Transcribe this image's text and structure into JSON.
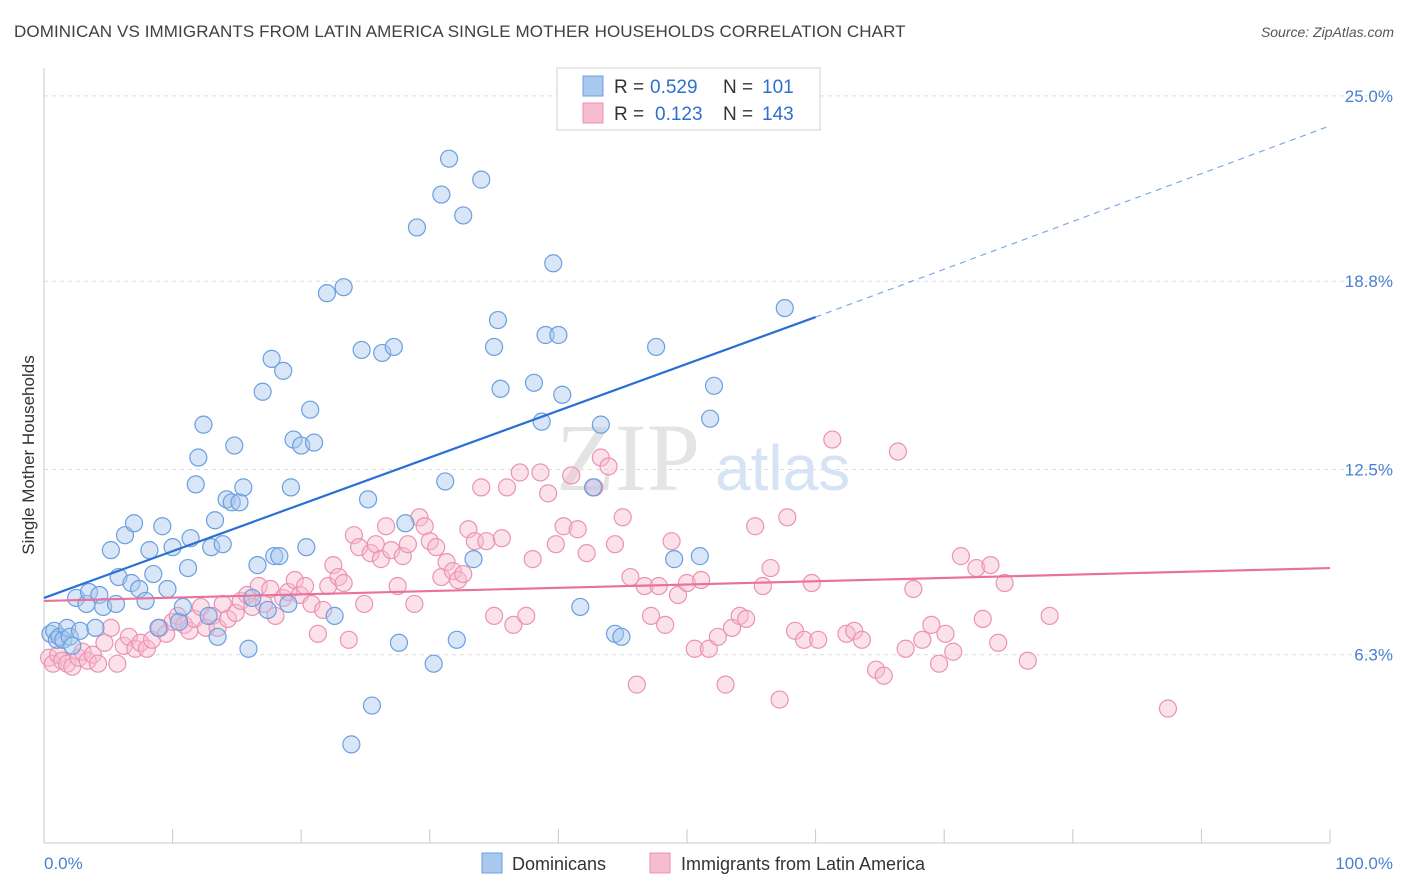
{
  "title": "DOMINICAN VS IMMIGRANTS FROM LATIN AMERICA SINGLE MOTHER HOUSEHOLDS CORRELATION CHART",
  "source": "Source: ZipAtlas.com",
  "watermark": {
    "part1": "ZIP",
    "part2": "atlas"
  },
  "legend": {
    "rows": [
      {
        "r_label": "R =",
        "r_value": "0.529",
        "n_label": "N =",
        "n_value": "101"
      },
      {
        "r_label": "R =",
        "r_value": "0.123",
        "n_label": "N =",
        "n_value": "143"
      }
    ]
  },
  "bottom_legend": [
    "Dominicans",
    "Immigrants from Latin America"
  ],
  "colors": {
    "blue_fill": "#a9c8ee",
    "blue_stroke": "#6a9fe0",
    "blue_line": "#2a6fd6",
    "pink_fill": "#f6bcd0",
    "pink_stroke": "#ec92b2",
    "pink_line": "#e8729c",
    "tick_text": "#4a7fd1",
    "grid": "#dcdcdc"
  },
  "chart_data": {
    "type": "scatter",
    "title": "DOMINICAN VS IMMIGRANTS FROM LATIN AMERICA SINGLE MOTHER HOUSEHOLDS CORRELATION CHART",
    "xlabel": "",
    "ylabel": "Single Mother Households",
    "xlim": [
      0,
      100
    ],
    "ylim": [
      0,
      25.6
    ],
    "x_tick_labels": [
      "0.0%",
      "100.0%"
    ],
    "y_ticks": [
      6.3,
      12.5,
      18.8,
      25.0
    ],
    "y_tick_labels": [
      "6.3%",
      "12.5%",
      "18.8%",
      "25.0%"
    ],
    "grid": true,
    "legend_position": "top-center",
    "series": [
      {
        "name": "Dominicans",
        "r": 0.529,
        "n": 101,
        "trend": {
          "x0": 0,
          "y0": 8.2,
          "x1": 60,
          "y1": 17.6,
          "dashed_to_x": 100,
          "dashed_to_y": 24.0
        },
        "points": [
          [
            0.5,
            7.0
          ],
          [
            0.8,
            7.1
          ],
          [
            1.0,
            6.8
          ],
          [
            1.2,
            6.9
          ],
          [
            1.5,
            6.8
          ],
          [
            1.8,
            7.2
          ],
          [
            2.0,
            6.9
          ],
          [
            2.2,
            6.6
          ],
          [
            2.5,
            8.2
          ],
          [
            2.8,
            7.1
          ],
          [
            3.3,
            8.0
          ],
          [
            3.5,
            8.4
          ],
          [
            4.0,
            7.2
          ],
          [
            4.3,
            8.3
          ],
          [
            4.6,
            7.9
          ],
          [
            5.2,
            9.8
          ],
          [
            5.6,
            8.0
          ],
          [
            5.8,
            8.9
          ],
          [
            6.3,
            10.3
          ],
          [
            6.8,
            8.7
          ],
          [
            7.0,
            10.7
          ],
          [
            7.4,
            8.5
          ],
          [
            7.9,
            8.1
          ],
          [
            8.2,
            9.8
          ],
          [
            8.5,
            9.0
          ],
          [
            8.9,
            7.2
          ],
          [
            9.2,
            10.6
          ],
          [
            9.6,
            8.5
          ],
          [
            10.0,
            9.9
          ],
          [
            10.5,
            7.4
          ],
          [
            10.8,
            7.9
          ],
          [
            11.2,
            9.2
          ],
          [
            11.4,
            10.2
          ],
          [
            11.8,
            12.0
          ],
          [
            12.0,
            12.9
          ],
          [
            12.4,
            14.0
          ],
          [
            12.8,
            7.6
          ],
          [
            13.0,
            9.9
          ],
          [
            13.3,
            10.8
          ],
          [
            13.5,
            6.9
          ],
          [
            13.9,
            10.0
          ],
          [
            14.2,
            11.5
          ],
          [
            14.6,
            11.4
          ],
          [
            14.8,
            13.3
          ],
          [
            15.2,
            11.4
          ],
          [
            15.5,
            11.9
          ],
          [
            15.9,
            6.5
          ],
          [
            16.2,
            8.2
          ],
          [
            16.6,
            9.3
          ],
          [
            17.0,
            15.1
          ],
          [
            17.4,
            7.8
          ],
          [
            17.7,
            16.2
          ],
          [
            17.9,
            9.6
          ],
          [
            18.3,
            9.6
          ],
          [
            18.6,
            15.8
          ],
          [
            19.0,
            8.0
          ],
          [
            19.2,
            11.9
          ],
          [
            19.4,
            13.5
          ],
          [
            20.0,
            13.3
          ],
          [
            20.4,
            9.9
          ],
          [
            20.7,
            14.5
          ],
          [
            21.0,
            13.4
          ],
          [
            22.0,
            18.4
          ],
          [
            22.6,
            7.6
          ],
          [
            23.3,
            18.6
          ],
          [
            23.9,
            3.3
          ],
          [
            24.7,
            16.5
          ],
          [
            25.2,
            11.5
          ],
          [
            25.5,
            4.6
          ],
          [
            26.3,
            16.4
          ],
          [
            27.2,
            16.6
          ],
          [
            27.6,
            6.7
          ],
          [
            28.1,
            10.7
          ],
          [
            29.0,
            20.6
          ],
          [
            30.3,
            6.0
          ],
          [
            30.9,
            21.7
          ],
          [
            31.2,
            12.1
          ],
          [
            31.5,
            22.9
          ],
          [
            32.1,
            6.8
          ],
          [
            32.6,
            21.0
          ],
          [
            33.4,
            9.5
          ],
          [
            34.0,
            22.2
          ],
          [
            35.0,
            16.6
          ],
          [
            35.3,
            17.5
          ],
          [
            35.5,
            15.2
          ],
          [
            38.1,
            15.4
          ],
          [
            38.7,
            14.1
          ],
          [
            39.0,
            17.0
          ],
          [
            39.6,
            19.4
          ],
          [
            40.0,
            17.0
          ],
          [
            40.3,
            15.0
          ],
          [
            41.7,
            7.9
          ],
          [
            42.7,
            11.9
          ],
          [
            43.3,
            14.0
          ],
          [
            44.4,
            7.0
          ],
          [
            44.9,
            6.9
          ],
          [
            47.6,
            16.6
          ],
          [
            49.0,
            9.5
          ],
          [
            51.0,
            9.6
          ],
          [
            51.8,
            14.2
          ],
          [
            52.1,
            15.3
          ],
          [
            57.6,
            17.9
          ]
        ]
      },
      {
        "name": "Immigrants from Latin America",
        "r": 0.123,
        "n": 143,
        "trend": {
          "x0": 0,
          "y0": 8.1,
          "x1": 100,
          "y1": 9.2
        },
        "points": [
          [
            0.4,
            6.2
          ],
          [
            0.7,
            6.0
          ],
          [
            1.1,
            6.3
          ],
          [
            1.4,
            6.1
          ],
          [
            1.8,
            6.0
          ],
          [
            2.2,
            5.9
          ],
          [
            2.7,
            6.2
          ],
          [
            3.0,
            6.4
          ],
          [
            3.4,
            6.1
          ],
          [
            3.8,
            6.3
          ],
          [
            4.2,
            6.0
          ],
          [
            4.7,
            6.7
          ],
          [
            5.2,
            7.2
          ],
          [
            5.7,
            6.0
          ],
          [
            6.2,
            6.6
          ],
          [
            6.6,
            6.9
          ],
          [
            7.1,
            6.5
          ],
          [
            7.5,
            6.7
          ],
          [
            8.0,
            6.5
          ],
          [
            8.4,
            6.8
          ],
          [
            9.0,
            7.2
          ],
          [
            9.5,
            7.0
          ],
          [
            10.0,
            7.4
          ],
          [
            10.4,
            7.6
          ],
          [
            10.9,
            7.3
          ],
          [
            11.3,
            7.1
          ],
          [
            11.7,
            7.5
          ],
          [
            12.2,
            7.9
          ],
          [
            12.6,
            7.2
          ],
          [
            13.1,
            7.6
          ],
          [
            13.5,
            7.2
          ],
          [
            13.9,
            8.0
          ],
          [
            14.3,
            7.5
          ],
          [
            14.9,
            7.7
          ],
          [
            15.3,
            8.1
          ],
          [
            15.8,
            8.3
          ],
          [
            16.2,
            7.9
          ],
          [
            16.7,
            8.6
          ],
          [
            17.1,
            8.0
          ],
          [
            17.6,
            8.5
          ],
          [
            18.0,
            7.6
          ],
          [
            18.6,
            8.2
          ],
          [
            19.0,
            8.4
          ],
          [
            19.5,
            8.8
          ],
          [
            19.9,
            8.3
          ],
          [
            20.3,
            8.6
          ],
          [
            20.8,
            8.0
          ],
          [
            21.3,
            7.0
          ],
          [
            21.7,
            7.8
          ],
          [
            22.1,
            8.6
          ],
          [
            22.5,
            9.3
          ],
          [
            22.9,
            8.9
          ],
          [
            23.3,
            8.7
          ],
          [
            23.7,
            6.8
          ],
          [
            24.1,
            10.3
          ],
          [
            24.5,
            9.9
          ],
          [
            24.9,
            8.0
          ],
          [
            25.4,
            9.7
          ],
          [
            25.8,
            10.0
          ],
          [
            26.2,
            9.5
          ],
          [
            26.6,
            10.6
          ],
          [
            27.0,
            9.8
          ],
          [
            27.5,
            8.6
          ],
          [
            27.9,
            9.6
          ],
          [
            28.3,
            10.0
          ],
          [
            28.8,
            8.0
          ],
          [
            29.2,
            10.9
          ],
          [
            29.6,
            10.6
          ],
          [
            30.0,
            10.1
          ],
          [
            30.5,
            9.9
          ],
          [
            30.9,
            8.9
          ],
          [
            31.3,
            9.4
          ],
          [
            31.8,
            9.1
          ],
          [
            32.2,
            8.8
          ],
          [
            32.6,
            9.0
          ],
          [
            33.0,
            10.5
          ],
          [
            33.5,
            10.1
          ],
          [
            34.0,
            11.9
          ],
          [
            34.4,
            10.1
          ],
          [
            35.0,
            7.6
          ],
          [
            35.6,
            10.2
          ],
          [
            36.0,
            11.9
          ],
          [
            36.5,
            7.3
          ],
          [
            37.0,
            12.4
          ],
          [
            37.5,
            7.6
          ],
          [
            38.0,
            9.5
          ],
          [
            38.6,
            12.4
          ],
          [
            39.2,
            11.7
          ],
          [
            39.8,
            10.0
          ],
          [
            40.4,
            10.6
          ],
          [
            41.0,
            12.3
          ],
          [
            41.5,
            10.5
          ],
          [
            42.2,
            9.7
          ],
          [
            42.8,
            11.9
          ],
          [
            43.3,
            12.9
          ],
          [
            43.9,
            12.6
          ],
          [
            44.4,
            10.0
          ],
          [
            45.0,
            10.9
          ],
          [
            45.6,
            8.9
          ],
          [
            46.1,
            5.3
          ],
          [
            46.7,
            8.6
          ],
          [
            47.2,
            7.6
          ],
          [
            47.8,
            8.6
          ],
          [
            48.3,
            7.3
          ],
          [
            48.8,
            10.1
          ],
          [
            49.3,
            8.3
          ],
          [
            50.0,
            8.7
          ],
          [
            50.6,
            6.5
          ],
          [
            51.1,
            8.8
          ],
          [
            51.7,
            6.5
          ],
          [
            52.4,
            6.9
          ],
          [
            53.0,
            5.3
          ],
          [
            53.5,
            7.2
          ],
          [
            54.1,
            7.6
          ],
          [
            54.6,
            7.5
          ],
          [
            55.3,
            10.6
          ],
          [
            55.9,
            8.6
          ],
          [
            56.5,
            9.2
          ],
          [
            57.2,
            4.8
          ],
          [
            57.8,
            10.9
          ],
          [
            58.4,
            7.1
          ],
          [
            59.1,
            6.8
          ],
          [
            59.7,
            8.7
          ],
          [
            60.2,
            6.8
          ],
          [
            61.3,
            13.5
          ],
          [
            62.4,
            7.0
          ],
          [
            63.0,
            7.1
          ],
          [
            63.6,
            6.8
          ],
          [
            64.7,
            5.8
          ],
          [
            65.3,
            5.6
          ],
          [
            66.4,
            13.1
          ],
          [
            67.0,
            6.5
          ],
          [
            67.6,
            8.5
          ],
          [
            68.3,
            6.8
          ],
          [
            69.0,
            7.3
          ],
          [
            69.6,
            6.0
          ],
          [
            70.1,
            7.0
          ],
          [
            70.7,
            6.4
          ],
          [
            71.3,
            9.6
          ],
          [
            72.5,
            9.2
          ],
          [
            73.0,
            7.5
          ],
          [
            73.6,
            9.3
          ],
          [
            74.2,
            6.7
          ],
          [
            74.7,
            8.7
          ],
          [
            76.5,
            6.1
          ],
          [
            78.2,
            7.6
          ],
          [
            87.4,
            4.5
          ]
        ]
      }
    ]
  }
}
